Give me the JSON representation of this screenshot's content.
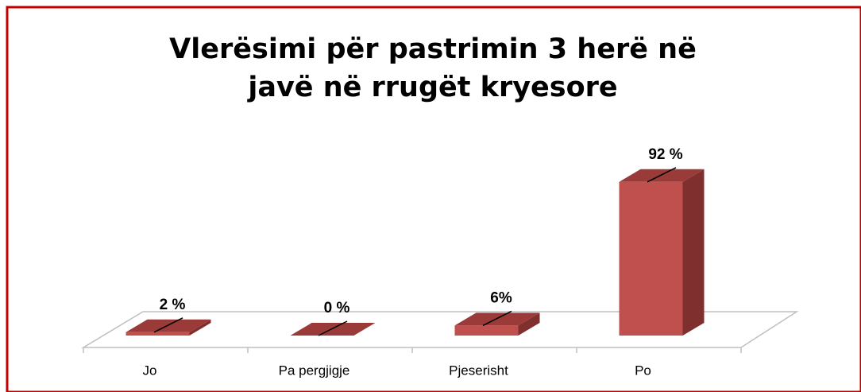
{
  "chart_data": {
    "type": "bar3d",
    "title": "Vlerësimi për pastrimin 3 herë në javë në rrugët kryesore",
    "categories": [
      "Jo",
      "Pa pergjigje",
      "Pjeserisht",
      "Po"
    ],
    "values": [
      2,
      0,
      6,
      92
    ],
    "value_labels": [
      "2 %",
      "0 %",
      "6%",
      "92 %"
    ],
    "color": "#c0504d"
  }
}
